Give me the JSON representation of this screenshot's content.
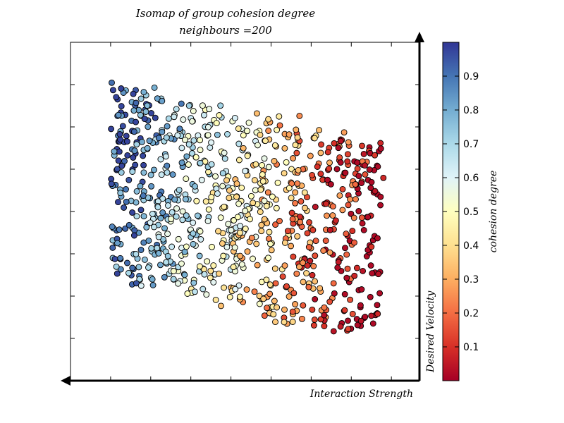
{
  "chart_data": {
    "type": "scatter",
    "title": "Isomap of group cohesion degree",
    "subtitle": "neighbours =200",
    "xlabel": "Interaction Strength",
    "ylabel": "Desired Velocity",
    "colorbar": {
      "label": "cohesion degree",
      "range": [
        0.0,
        1.0
      ],
      "ticks": [
        "0.1",
        "0.2",
        "0.3",
        "0.4",
        "0.5",
        "0.6",
        "0.7",
        "0.8",
        "0.9"
      ],
      "colormap": "RdYlBu"
    },
    "xlim": [
      -1.0,
      7.7
    ],
    "ylim": [
      0.0,
      8.0
    ],
    "grid": false,
    "legend": "none",
    "colors": {
      "cmap_stops": [
        "#a50026",
        "#d73027",
        "#f46d43",
        "#fdae61",
        "#fee090",
        "#ffffbf",
        "#e0f3f8",
        "#abd9e9",
        "#74add1",
        "#4575b4",
        "#313695"
      ],
      "marker_edge": "#000000"
    },
    "series": [
      {
        "points_generated": true,
        "count": 900,
        "note_columns": [
          "x",
          "y",
          "cohesion"
        ]
      }
    ]
  }
}
